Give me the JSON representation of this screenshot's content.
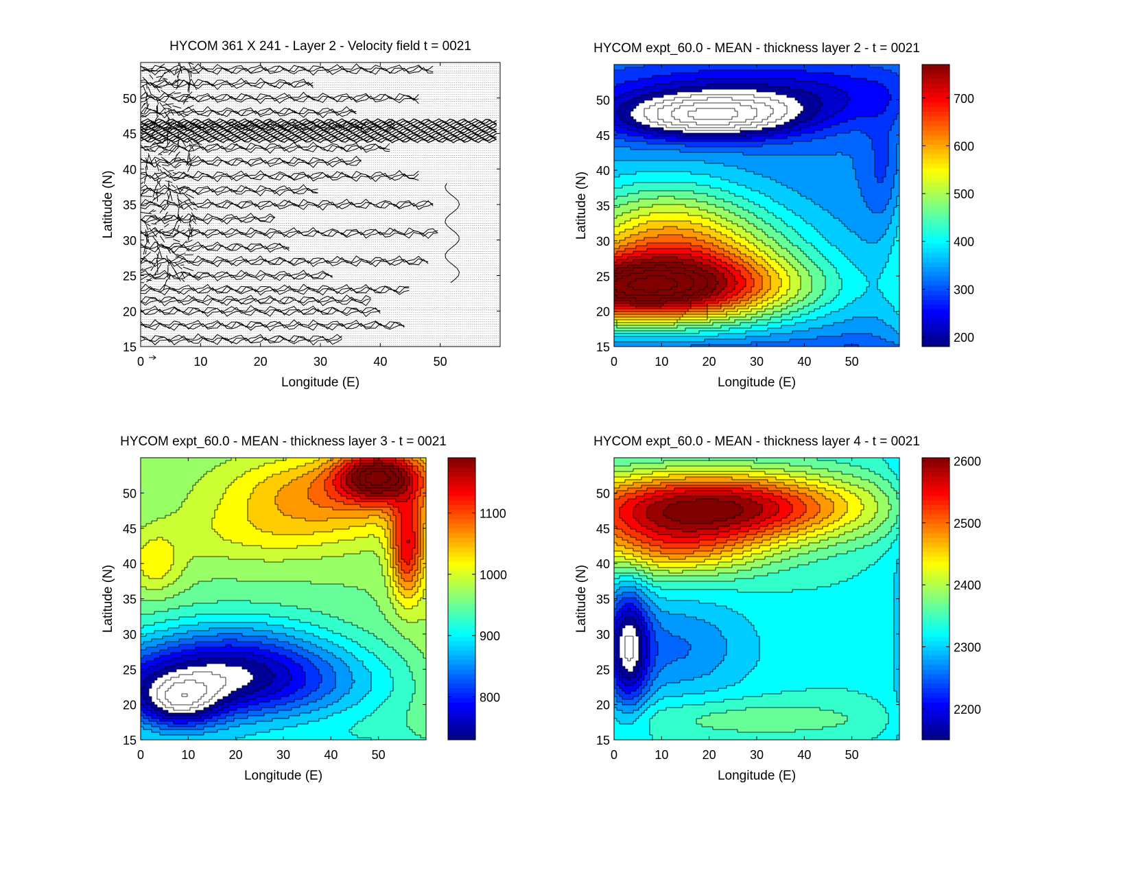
{
  "chart_data": [
    {
      "type": "quiver",
      "title": "HYCOM 361 X 241 - Layer 2 - Velocity field  t = 0021",
      "xlabel": "Longitude (E)",
      "ylabel": "Latitude (N)",
      "xlim": [
        0,
        60
      ],
      "ylim": [
        15,
        55
      ],
      "xticks": [
        0,
        10,
        20,
        30,
        40,
        50
      ],
      "yticks": [
        15,
        20,
        25,
        30,
        35,
        40,
        45,
        50
      ],
      "jets_lat": [
        16,
        18,
        20,
        21.5,
        23,
        25,
        27,
        29,
        31,
        33,
        35,
        37,
        39,
        41,
        43,
        46,
        48,
        50,
        52,
        54
      ],
      "strong_jet_lat": 45.5,
      "reference_arrow": "0",
      "colormap": "none"
    },
    {
      "type": "heatmap",
      "title": "HYCOM expt_60.0 - MEAN - thickness layer 2 - t = 0021",
      "xlabel": "Longitude (E)",
      "ylabel": "Latitude (N)",
      "xlim": [
        0,
        60
      ],
      "ylim": [
        15,
        55
      ],
      "xticks": [
        0,
        10,
        20,
        30,
        40,
        50
      ],
      "yticks": [
        15,
        20,
        25,
        30,
        35,
        40,
        45,
        50
      ],
      "colorbar_range": [
        180,
        770
      ],
      "colorbar_ticks": [
        200,
        300,
        400,
        500,
        600,
        700
      ],
      "colormap": "jet",
      "features": [
        {
          "kind": "max",
          "lon": 5,
          "lat": 23,
          "value": 760,
          "sx": 22,
          "sy": 3.5
        },
        {
          "kind": "gap",
          "lon": 20,
          "lat": 47.5,
          "value": 160
        }
      ]
    },
    {
      "type": "heatmap",
      "title": "HYCOM expt_60.0 - MEAN - thickness layer 3 - t = 0021",
      "xlabel": "Longitude (E)",
      "ylabel": "Latitude (N)",
      "xlim": [
        0,
        60
      ],
      "ylim": [
        15,
        55
      ],
      "xticks": [
        0,
        10,
        20,
        30,
        40,
        50
      ],
      "yticks": [
        15,
        20,
        25,
        30,
        35,
        40,
        45,
        50
      ],
      "colorbar_range": [
        730,
        1190
      ],
      "colorbar_ticks": [
        800,
        900,
        1000,
        1100
      ],
      "colormap": "jet",
      "features": [
        {
          "kind": "max",
          "lon": 50,
          "lat": 53,
          "value": 1180
        },
        {
          "kind": "min",
          "lon": 10,
          "lat": 20,
          "value": 720
        },
        {
          "kind": "max",
          "lon": 56,
          "lat": 42,
          "value": 1150
        }
      ]
    },
    {
      "type": "heatmap",
      "title": "HYCOM expt_60.0 - MEAN - thickness layer 4 - t = 0021",
      "xlabel": "Longitude (E)",
      "ylabel": "Latitude (N)",
      "xlim": [
        0,
        60
      ],
      "ylim": [
        15,
        55
      ],
      "xticks": [
        0,
        10,
        20,
        30,
        40,
        50
      ],
      "yticks": [
        15,
        20,
        25,
        30,
        35,
        40,
        45,
        50
      ],
      "colorbar_range": [
        2150,
        2605
      ],
      "colorbar_ticks": [
        2200,
        2300,
        2400,
        2500,
        2600
      ],
      "colormap": "jet",
      "features": [
        {
          "kind": "max",
          "lon": 20,
          "lat": 48,
          "value": 2600
        },
        {
          "kind": "min",
          "lon": 3,
          "lat": 28,
          "value": 2160
        }
      ]
    }
  ]
}
